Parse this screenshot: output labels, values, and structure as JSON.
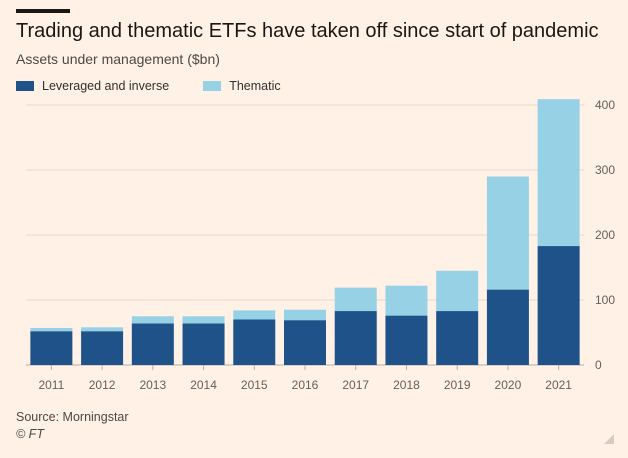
{
  "header": {
    "title": "Trading and thematic ETFs have taken off since start of pandemic",
    "subtitle": "Assets under management ($bn)"
  },
  "legend": {
    "items": [
      {
        "label": "Leveraged and inverse",
        "color": "#1f5288"
      },
      {
        "label": "Thematic",
        "color": "#96d1e6"
      }
    ]
  },
  "footer": {
    "source": "Source: Morningstar",
    "credit": "© FT"
  },
  "colors": {
    "background": "#fff1e5",
    "leveraged": "#1f5288",
    "thematic": "#96d1e6",
    "grid": "#e6dcd2"
  },
  "icons": [
    "resize-handle-icon"
  ],
  "chart_data": {
    "type": "bar",
    "stacked": true,
    "title": "Trading and thematic ETFs have taken off since start of pandemic",
    "subtitle": "Assets under management ($bn)",
    "categories": [
      "2011",
      "2012",
      "2013",
      "2014",
      "2015",
      "2016",
      "2017",
      "2018",
      "2019",
      "2020",
      "2021"
    ],
    "series": [
      {
        "name": "Leveraged and inverse",
        "values": [
          52,
          52,
          64,
          64,
          70,
          69,
          83,
          76,
          83,
          116,
          183
        ]
      },
      {
        "name": "Thematic",
        "values": [
          5,
          6,
          11,
          11,
          14,
          16,
          36,
          46,
          62,
          174,
          226
        ]
      }
    ],
    "ylim": [
      0,
      400
    ],
    "yticks": [
      0,
      100,
      200,
      300,
      400
    ],
    "y_axis_side": "right",
    "grid": true,
    "legend_position": "top-left"
  }
}
